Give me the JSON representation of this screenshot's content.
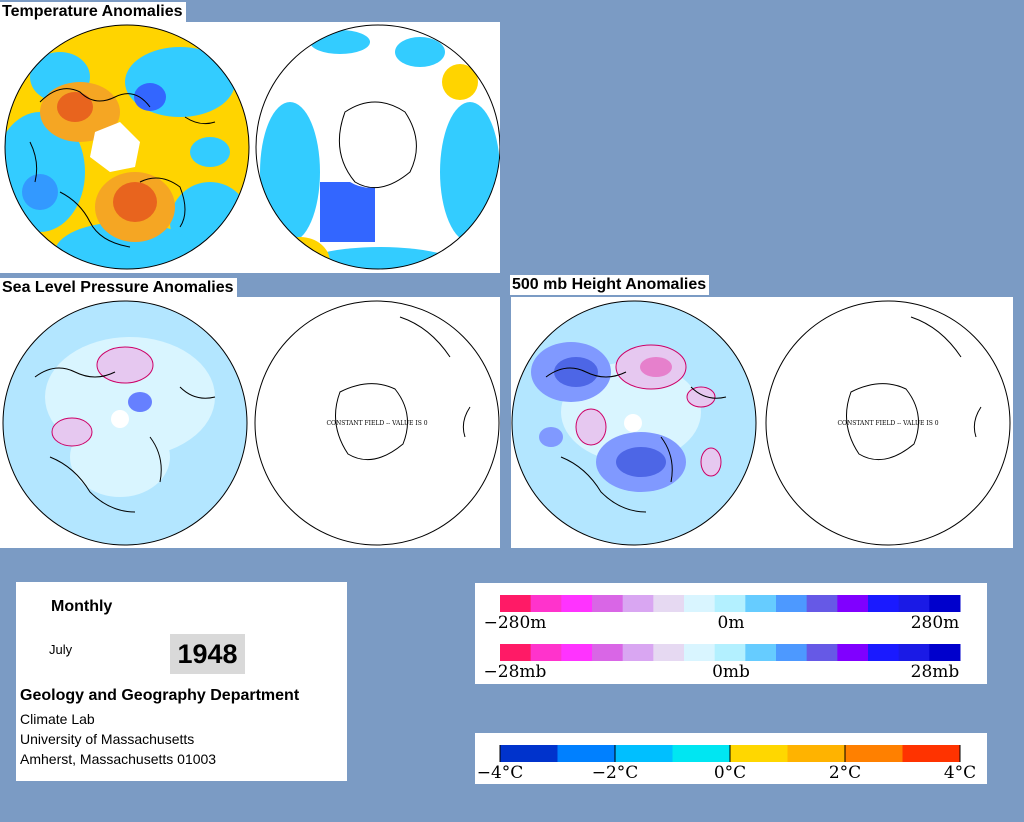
{
  "titles": {
    "temperature": "Temperature Anomalies",
    "slp": "Sea Level Pressure Anomalies",
    "height500": "500 mb Height Anomalies"
  },
  "map_annotations": {
    "constant_field": "CONSTANT FIELD -- VALUE IS 0"
  },
  "info": {
    "period": "Monthly",
    "month": "July",
    "year": "1948",
    "department": "Geology and Geography Department",
    "lab": "Climate Lab",
    "university": "University of Massachusetts",
    "address": "Amherst, Massachusetts 01003"
  },
  "legends": {
    "height": {
      "min": "−280m",
      "mid": "0m",
      "max": "280m"
    },
    "pressure": {
      "min": "−28mb",
      "mid": "0mb",
      "max": "28mb"
    },
    "temperature": [
      "−4°C",
      "−2°C",
      "0°C",
      "2°C",
      "4°C"
    ]
  },
  "colors": {
    "background": "#7b9bc4",
    "anomaly_scale": [
      "#ff1a66",
      "#ff33cc",
      "#ff33ff",
      "#d966e6",
      "#d9a6f2",
      "#e6d9f2",
      "#d9f5ff",
      "#b3f0ff",
      "#66ccff",
      "#4d99ff",
      "#6659e6",
      "#8000ff",
      "#1a1aff",
      "#1a1ae6",
      "#0000cc"
    ],
    "temperature_scale": [
      "#0033cc",
      "#0080ff",
      "#00bfff",
      "#00e6f2",
      "#ffd700",
      "#ffb300",
      "#ff8000",
      "#ff3300"
    ]
  }
}
